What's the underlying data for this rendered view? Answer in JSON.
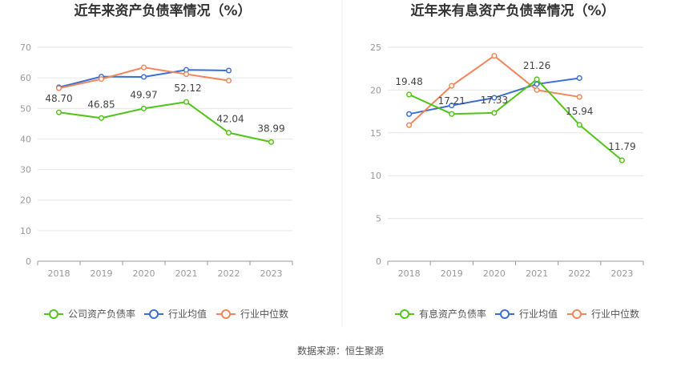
{
  "chart_data": [
    {
      "type": "line",
      "title": "近年来资产负债率情况（%）",
      "categories": [
        "2018",
        "2019",
        "2020",
        "2021",
        "2022",
        "2023"
      ],
      "ylim": [
        0,
        70
      ],
      "yticks": [
        0,
        10,
        20,
        30,
        40,
        50,
        60,
        70
      ],
      "grid": true,
      "legend_position": "bottom",
      "series": [
        {
          "name": "公司资产负债率",
          "color": "#52c41a",
          "values": [
            48.7,
            46.85,
            49.97,
            52.12,
            42.04,
            38.99
          ],
          "labels": [
            "48.70",
            "46.85",
            "49.97",
            "52.12",
            "42.04",
            "38.99"
          ]
        },
        {
          "name": "行业均值",
          "color": "#3b6fd4",
          "values": [
            56.9,
            60.4,
            60.3,
            62.6,
            62.4,
            null
          ]
        },
        {
          "name": "行业中位数",
          "color": "#f0875c",
          "values": [
            56.6,
            59.6,
            63.4,
            61.2,
            59.1,
            null
          ]
        }
      ]
    },
    {
      "type": "line",
      "title": "近年来有息资产负债率情况（%）",
      "categories": [
        "2018",
        "2019",
        "2020",
        "2021",
        "2022",
        "2023"
      ],
      "ylim": [
        0,
        25
      ],
      "yticks": [
        0,
        5,
        10,
        15,
        20,
        25
      ],
      "grid": true,
      "legend_position": "bottom",
      "series": [
        {
          "name": "有息资产负债率",
          "color": "#52c41a",
          "values": [
            19.48,
            17.21,
            17.33,
            21.26,
            15.94,
            11.79
          ],
          "labels": [
            "19.48",
            "17.21",
            "17.33",
            "21.26",
            "15.94",
            "11.79"
          ]
        },
        {
          "name": "行业均值",
          "color": "#3b6fd4",
          "values": [
            17.2,
            18.2,
            19.1,
            20.7,
            21.4,
            null
          ]
        },
        {
          "name": "行业中位数",
          "color": "#f0875c",
          "values": [
            15.9,
            20.5,
            24.0,
            20.0,
            19.2,
            null
          ]
        }
      ]
    }
  ],
  "source_text": "数据来源：恒生聚源"
}
